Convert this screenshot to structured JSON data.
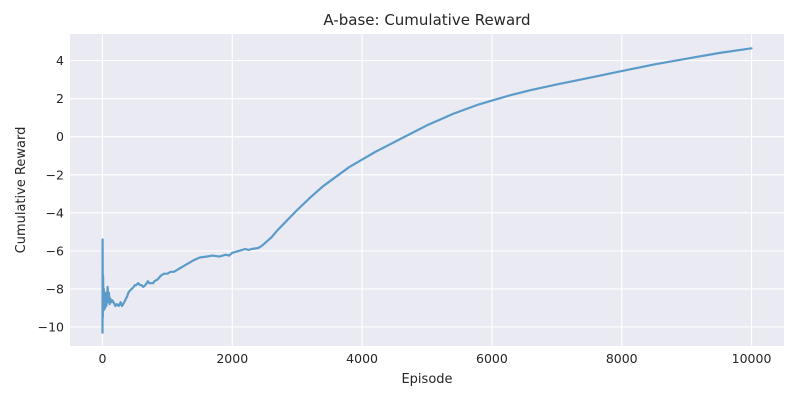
{
  "chart_data": {
    "type": "line",
    "title": "A-base: Cumulative Reward",
    "xlabel": "Episode",
    "ylabel": "Cumulative Reward",
    "xlim": [
      -500,
      10500
    ],
    "ylim": [
      -11,
      5.4
    ],
    "xticks": [
      0,
      2000,
      4000,
      6000,
      8000,
      10000
    ],
    "xtick_labels": [
      "0",
      "2000",
      "4000",
      "6000",
      "8000",
      "10000"
    ],
    "yticks": [
      -10,
      -8,
      -6,
      -4,
      -2,
      0,
      2,
      4
    ],
    "ytick_labels": [
      "−10",
      "−8",
      "−6",
      "−4",
      "−2",
      "0",
      "2",
      "4"
    ],
    "grid": true,
    "line_color": "#5b9bc9",
    "background_color": "#eaeaf2",
    "series": [
      {
        "x": [
          1,
          3,
          6,
          10,
          15,
          20,
          25,
          30,
          40,
          50,
          60,
          70,
          80,
          90,
          100,
          110,
          120,
          130,
          140,
          150,
          170,
          200,
          220,
          250,
          280,
          300,
          320,
          350,
          380,
          400,
          420,
          450,
          480,
          500,
          520,
          550,
          580,
          600,
          630,
          660,
          700,
          720,
          750,
          780,
          800,
          850,
          900,
          950,
          1000,
          1050,
          1100,
          1150,
          1200,
          1250,
          1300,
          1400,
          1500,
          1600,
          1700,
          1800,
          1900,
          1950,
          2000,
          2100,
          2200,
          2250,
          2300,
          2400,
          2450,
          2500,
          2600,
          2700,
          2800,
          2900,
          3000,
          3200,
          3400,
          3600,
          3800,
          4000,
          4200,
          4400,
          4600,
          4800,
          5000,
          5200,
          5400,
          5600,
          5800,
          6000,
          6300,
          6600,
          7000,
          7500,
          8000,
          8500,
          9000,
          9500,
          10000
        ],
        "y": [
          -10.3,
          -5.4,
          -9.5,
          -7.3,
          -8.9,
          -8.0,
          -9.1,
          -8.3,
          -9.0,
          -8.2,
          -8.9,
          -8.6,
          -7.9,
          -8.7,
          -8.2,
          -8.8,
          -8.5,
          -8.6,
          -8.7,
          -8.6,
          -8.7,
          -8.9,
          -8.8,
          -8.9,
          -8.7,
          -8.9,
          -8.8,
          -8.6,
          -8.4,
          -8.2,
          -8.1,
          -8.0,
          -7.9,
          -7.8,
          -7.8,
          -7.7,
          -7.8,
          -7.8,
          -7.9,
          -7.8,
          -7.6,
          -7.7,
          -7.7,
          -7.7,
          -7.6,
          -7.5,
          -7.3,
          -7.2,
          -7.2,
          -7.1,
          -7.1,
          -7.0,
          -6.9,
          -6.8,
          -6.7,
          -6.5,
          -6.35,
          -6.3,
          -6.25,
          -6.3,
          -6.2,
          -6.25,
          -6.1,
          -6.0,
          -5.9,
          -5.95,
          -5.9,
          -5.85,
          -5.75,
          -5.6,
          -5.3,
          -4.9,
          -4.55,
          -4.2,
          -3.85,
          -3.2,
          -2.6,
          -2.1,
          -1.6,
          -1.2,
          -0.8,
          -0.45,
          -0.1,
          0.25,
          0.6,
          0.9,
          1.2,
          1.45,
          1.7,
          1.9,
          2.2,
          2.45,
          2.75,
          3.1,
          3.45,
          3.8,
          4.1,
          4.4,
          4.65
        ]
      }
    ]
  }
}
